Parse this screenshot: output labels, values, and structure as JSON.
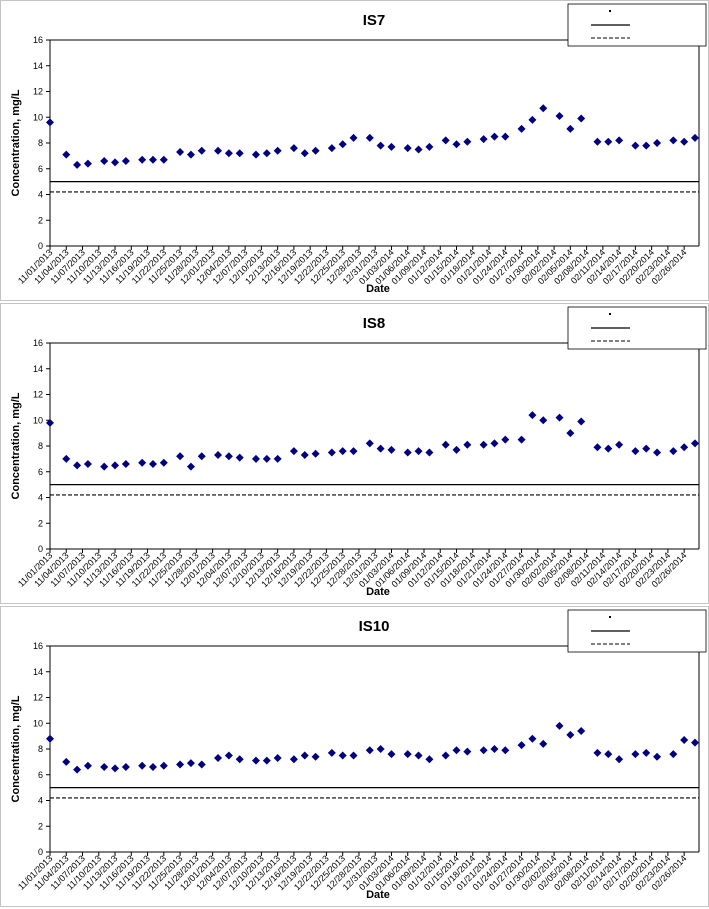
{
  "chart_data": [
    {
      "type": "scatter",
      "title": "IS7",
      "x_label": "Date",
      "y_label": "Concentration, mg/L",
      "color": "#000080",
      "xlim": [
        "11/01/2013",
        "02/28/2014"
      ],
      "xticks": [
        "11/01/2013",
        "11/04/2013",
        "11/07/2013",
        "11/10/2013",
        "11/13/2013",
        "11/16/2013",
        "11/19/2013",
        "11/22/2013",
        "11/25/2013",
        "11/28/2013",
        "12/01/2013",
        "12/04/2013",
        "12/07/2013",
        "12/10/2013",
        "12/13/2013",
        "12/16/2013",
        "12/19/2013",
        "12/22/2013",
        "12/25/2013",
        "12/28/2013",
        "12/31/2013",
        "01/03/2014",
        "01/06/2014",
        "01/09/2014",
        "01/12/2014",
        "01/15/2014",
        "01/18/2014",
        "01/21/2014",
        "01/24/2014",
        "01/27/2014",
        "01/30/2014",
        "02/02/2014",
        "02/05/2014",
        "02/08/2014",
        "02/11/2014",
        "02/14/2014",
        "02/17/2014",
        "02/20/2014",
        "02/23/2014",
        "02/26/2014"
      ],
      "ylim": [
        0,
        16
      ],
      "yticks": [
        0,
        2,
        4,
        6,
        8,
        10,
        12,
        14,
        16
      ],
      "x": [
        "11/01/2013",
        "11/04/2013",
        "11/06/2013",
        "11/08/2013",
        "11/11/2013",
        "11/13/2013",
        "11/15/2013",
        "11/18/2013",
        "11/20/2013",
        "11/22/2013",
        "11/25/2013",
        "11/27/2013",
        "11/29/2013",
        "12/02/2013",
        "12/04/2013",
        "12/06/2013",
        "12/09/2013",
        "12/11/2013",
        "12/13/2013",
        "12/16/2013",
        "12/18/2013",
        "12/20/2013",
        "12/23/2013",
        "12/25/2013",
        "12/27/2013",
        "12/30/2013",
        "01/01/2014",
        "01/03/2014",
        "01/06/2014",
        "01/08/2014",
        "01/10/2014",
        "01/13/2014",
        "01/15/2014",
        "01/17/2014",
        "01/20/2014",
        "01/22/2014",
        "01/24/2014",
        "01/27/2014",
        "01/29/2014",
        "01/31/2014",
        "02/03/2014",
        "02/05/2014",
        "02/07/2014",
        "02/10/2014",
        "02/12/2014",
        "02/14/2014",
        "02/17/2014",
        "02/19/2014",
        "02/21/2014",
        "02/24/2014",
        "02/26/2014",
        "02/28/2014"
      ],
      "values": [
        9.6,
        7.1,
        6.3,
        6.4,
        6.6,
        6.5,
        6.6,
        6.7,
        6.7,
        6.7,
        7.3,
        7.1,
        7.4,
        7.4,
        7.2,
        7.2,
        7.1,
        7.2,
        7.4,
        7.6,
        7.2,
        7.4,
        7.6,
        7.9,
        8.4,
        8.4,
        7.8,
        7.7,
        7.6,
        7.5,
        7.7,
        8.2,
        7.9,
        8.1,
        8.3,
        8.5,
        8.5,
        9.1,
        9.8,
        10.7,
        10.1,
        9.1,
        9.9,
        8.1,
        8.1,
        8.2,
        7.8,
        7.8,
        8.0,
        8.2,
        8.1,
        8.4
      ],
      "reference_lines": [
        {
          "value": 5,
          "dashed": false
        },
        {
          "value": 4.2,
          "dashed": true
        }
      ]
    },
    {
      "type": "scatter",
      "title": "IS8",
      "x_label": "Date",
      "y_label": "Concentration, mg/L",
      "color": "#000080",
      "xlim": [
        "11/01/2013",
        "02/28/2014"
      ],
      "xticks": [
        "11/01/2013",
        "11/04/2013",
        "11/07/2013",
        "11/10/2013",
        "11/13/2013",
        "11/16/2013",
        "11/19/2013",
        "11/22/2013",
        "11/25/2013",
        "11/28/2013",
        "12/01/2013",
        "12/04/2013",
        "12/07/2013",
        "12/10/2013",
        "12/13/2013",
        "12/16/2013",
        "12/19/2013",
        "12/22/2013",
        "12/25/2013",
        "12/28/2013",
        "12/31/2013",
        "01/03/2014",
        "01/06/2014",
        "01/09/2014",
        "01/12/2014",
        "01/15/2014",
        "01/18/2014",
        "01/21/2014",
        "01/24/2014",
        "01/27/2014",
        "01/30/2014",
        "02/02/2014",
        "02/05/2014",
        "02/08/2014",
        "02/11/2014",
        "02/14/2014",
        "02/17/2014",
        "02/20/2014",
        "02/23/2014",
        "02/26/2014"
      ],
      "ylim": [
        0,
        16
      ],
      "yticks": [
        0,
        2,
        4,
        6,
        8,
        10,
        12,
        14,
        16
      ],
      "x": [
        "11/01/2013",
        "11/04/2013",
        "11/06/2013",
        "11/08/2013",
        "11/11/2013",
        "11/13/2013",
        "11/15/2013",
        "11/18/2013",
        "11/20/2013",
        "11/22/2013",
        "11/25/2013",
        "11/27/2013",
        "11/29/2013",
        "12/02/2013",
        "12/04/2013",
        "12/06/2013",
        "12/09/2013",
        "12/11/2013",
        "12/13/2013",
        "12/16/2013",
        "12/18/2013",
        "12/20/2013",
        "12/23/2013",
        "12/25/2013",
        "12/27/2013",
        "12/30/2013",
        "01/01/2014",
        "01/03/2014",
        "01/06/2014",
        "01/08/2014",
        "01/10/2014",
        "01/13/2014",
        "01/15/2014",
        "01/17/2014",
        "01/20/2014",
        "01/22/2014",
        "01/24/2014",
        "01/27/2014",
        "01/29/2014",
        "01/31/2014",
        "02/03/2014",
        "02/05/2014",
        "02/07/2014",
        "02/10/2014",
        "02/12/2014",
        "02/14/2014",
        "02/17/2014",
        "02/19/2014",
        "02/21/2014",
        "02/24/2014",
        "02/26/2014",
        "02/28/2014"
      ],
      "values": [
        9.8,
        7.0,
        6.5,
        6.6,
        6.4,
        6.5,
        6.6,
        6.7,
        6.6,
        6.7,
        7.2,
        6.4,
        7.2,
        7.3,
        7.2,
        7.1,
        7.0,
        7.0,
        7.0,
        7.6,
        7.3,
        7.4,
        7.5,
        7.6,
        7.6,
        8.2,
        7.8,
        7.7,
        7.5,
        7.6,
        7.5,
        8.1,
        7.7,
        8.1,
        8.1,
        8.2,
        8.5,
        8.5,
        10.4,
        10.0,
        10.2,
        9.0,
        9.9,
        7.9,
        7.8,
        8.1,
        7.6,
        7.8,
        7.5,
        7.6,
        7.9,
        8.2
      ],
      "reference_lines": [
        {
          "value": 5,
          "dashed": false
        },
        {
          "value": 4.2,
          "dashed": true
        }
      ]
    },
    {
      "type": "scatter",
      "title": "IS10",
      "x_label": "Date",
      "y_label": "Concentration, mg/L",
      "color": "#000080",
      "xlim": [
        "11/01/2013",
        "02/28/2014"
      ],
      "xticks": [
        "11/01/2013",
        "11/04/2013",
        "11/07/2013",
        "11/10/2013",
        "11/13/2013",
        "11/16/2013",
        "11/19/2013",
        "11/22/2013",
        "11/25/2013",
        "11/28/2013",
        "12/01/2013",
        "12/04/2013",
        "12/07/2013",
        "12/10/2013",
        "12/13/2013",
        "12/16/2013",
        "12/19/2013",
        "12/22/2013",
        "12/25/2013",
        "12/28/2013",
        "12/31/2013",
        "01/03/2014",
        "01/06/2014",
        "01/09/2014",
        "01/12/2014",
        "01/15/2014",
        "01/18/2014",
        "01/21/2014",
        "01/24/2014",
        "01/27/2014",
        "01/30/2014",
        "02/02/2014",
        "02/05/2014",
        "02/08/2014",
        "02/11/2014",
        "02/14/2014",
        "02/17/2014",
        "02/20/2014",
        "02/23/2014",
        "02/26/2014"
      ],
      "ylim": [
        0,
        16
      ],
      "yticks": [
        0,
        2,
        4,
        6,
        8,
        10,
        12,
        14,
        16
      ],
      "x": [
        "11/01/2013",
        "11/04/2013",
        "11/06/2013",
        "11/08/2013",
        "11/11/2013",
        "11/13/2013",
        "11/15/2013",
        "11/18/2013",
        "11/20/2013",
        "11/22/2013",
        "11/25/2013",
        "11/27/2013",
        "11/29/2013",
        "12/02/2013",
        "12/04/2013",
        "12/06/2013",
        "12/09/2013",
        "12/11/2013",
        "12/13/2013",
        "12/16/2013",
        "12/18/2013",
        "12/20/2013",
        "12/23/2013",
        "12/25/2013",
        "12/27/2013",
        "12/30/2013",
        "01/01/2014",
        "01/03/2014",
        "01/06/2014",
        "01/08/2014",
        "01/10/2014",
        "01/13/2014",
        "01/15/2014",
        "01/17/2014",
        "01/20/2014",
        "01/22/2014",
        "01/24/2014",
        "01/27/2014",
        "01/29/2014",
        "01/31/2014",
        "02/03/2014",
        "02/05/2014",
        "02/07/2014",
        "02/10/2014",
        "02/12/2014",
        "02/14/2014",
        "02/17/2014",
        "02/19/2014",
        "02/21/2014",
        "02/24/2014",
        "02/26/2014",
        "02/28/2014"
      ],
      "values": [
        8.8,
        7.0,
        6.4,
        6.7,
        6.6,
        6.5,
        6.6,
        6.7,
        6.6,
        6.7,
        6.8,
        6.9,
        6.8,
        7.3,
        7.5,
        7.2,
        7.1,
        7.1,
        7.3,
        7.2,
        7.5,
        7.4,
        7.7,
        7.5,
        7.5,
        7.9,
        8.0,
        7.6,
        7.6,
        7.5,
        7.2,
        7.5,
        7.9,
        7.8,
        7.9,
        8.0,
        7.9,
        8.3,
        8.8,
        8.4,
        9.8,
        9.1,
        9.4,
        7.7,
        7.6,
        7.2,
        7.6,
        7.7,
        7.4,
        7.6,
        8.7,
        8.5
      ],
      "reference_lines": [
        {
          "value": 5,
          "dashed": false
        },
        {
          "value": 4.2,
          "dashed": true
        }
      ]
    }
  ]
}
